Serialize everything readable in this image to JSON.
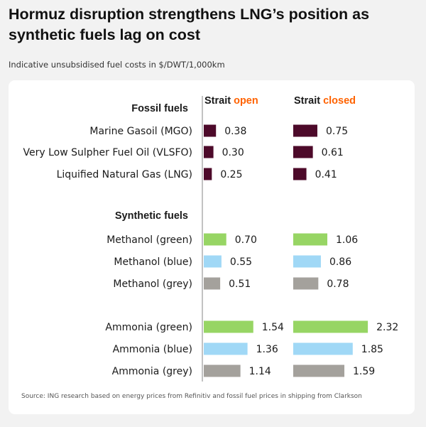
{
  "header": {
    "title": "Hormuz disruption strengthens LNG’s position as synthetic fuels lag on cost",
    "subtitle": "Indicative unsubsidised fuel costs in $/DWT/1,000km"
  },
  "footer": {
    "source": "Source: ING research based on energy prices from Refinitiv and fossil fuel prices in shipping from Clarkson"
  },
  "colors": {
    "fossil": "#4d0a2a",
    "green": "#97d564",
    "blue": "#a0d8f6",
    "grey": "#a4a19c",
    "accent": "#ff6200"
  },
  "chart_data": {
    "type": "bar",
    "orientation": "horizontal",
    "panels": [
      {
        "prefix": "Strait ",
        "highlight": "open",
        "series": "open"
      },
      {
        "prefix": "Strait ",
        "highlight": "closed",
        "series": "closed"
      }
    ],
    "groups": [
      {
        "name": "Fossil fuels",
        "items": [
          {
            "label": "Marine Gasoil (MGO)",
            "color": "fossil",
            "open": 0.38,
            "closed": 0.75
          },
          {
            "label": "Very Low Sulpher Fuel Oil (VLSFO)",
            "color": "fossil",
            "open": 0.3,
            "closed": 0.61
          },
          {
            "label": "Liquified Natural Gas (LNG)",
            "color": "fossil",
            "open": 0.25,
            "closed": 0.41
          }
        ]
      },
      {
        "name": "Synthetic fuels",
        "items": [
          {
            "label": "Methanol (green)",
            "color": "green",
            "open": 0.7,
            "closed": 1.06
          },
          {
            "label": "Methanol (blue)",
            "color": "blue",
            "open": 0.55,
            "closed": 0.86
          },
          {
            "label": "Methanol (grey)",
            "color": "grey",
            "open": 0.51,
            "closed": 0.78
          },
          {
            "label": "Ammonia (green)",
            "color": "green",
            "open": 1.54,
            "closed": 2.32
          },
          {
            "label": "Ammonia (blue)",
            "color": "blue",
            "open": 1.36,
            "closed": 1.85
          },
          {
            "label": "Ammonia (grey)",
            "color": "grey",
            "open": 1.14,
            "closed": 1.59
          }
        ]
      }
    ],
    "value_format": "0.00"
  }
}
